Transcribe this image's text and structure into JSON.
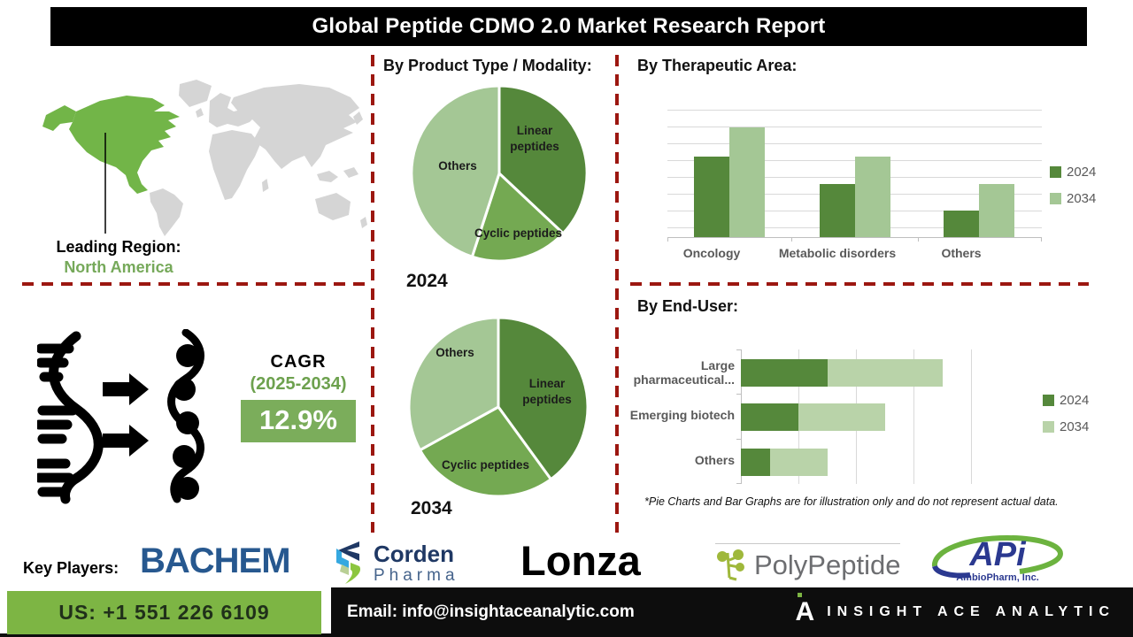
{
  "title": "Global Peptide CDMO 2.0 Market Research Report",
  "map": {
    "leading_label": "Leading Region:",
    "leading_value": "North America"
  },
  "growth": {
    "cagr_label": "CAGR",
    "period": "(2025-2034)",
    "value": "12.9%"
  },
  "sections": {
    "product": "By Product Type / Modality:",
    "therapeutic": "By Therapeutic Area:",
    "end_user": "By End-User:"
  },
  "chart_data": [
    {
      "type": "pie",
      "year_label": "2024",
      "group": "By Product Type / Modality:",
      "slices": [
        {
          "label": "Linear peptides",
          "value": 37
        },
        {
          "label": "Cyclic peptides",
          "value": 18
        },
        {
          "label": "Others",
          "value": 45
        }
      ]
    },
    {
      "type": "pie",
      "year_label": "2034",
      "group": "By Product Type / Modality:",
      "slices": [
        {
          "label": "Linear peptides",
          "value": 40
        },
        {
          "label": "Cyclic peptides",
          "value": 27
        },
        {
          "label": "Others",
          "value": 33
        }
      ]
    },
    {
      "type": "bar",
      "group": "By Therapeutic Area:",
      "categories": [
        "Oncology",
        "Metabolic disorders",
        "Others"
      ],
      "series": [
        {
          "name": "2024",
          "values": [
            63,
            42,
            21
          ]
        },
        {
          "name": "2034",
          "values": [
            86,
            63,
            42
          ]
        }
      ],
      "ylim": [
        0,
        100
      ],
      "grid": true,
      "legend": "right"
    },
    {
      "type": "stacked-hbar",
      "group": "By End-User:",
      "categories": [
        "Large pharmaceutical...",
        "Emerging biotech",
        "Others"
      ],
      "series": [
        {
          "name": "2024",
          "values": [
            30,
            20,
            10
          ]
        },
        {
          "name": "2034",
          "values": [
            40,
            30,
            20
          ]
        }
      ],
      "xlim": [
        0,
        80
      ],
      "grid": true,
      "legend": "right"
    }
  ],
  "footnote": "*Pie Charts and Bar Graphs are for illustration only and do not represent actual data.",
  "key_players": {
    "label": "Key Players:",
    "bachem": "BACHEM",
    "corden_line1": "Corden",
    "corden_line2": "Pharma",
    "lonza": "Lonza",
    "polypeptide": "PolyPeptide",
    "api": "APi",
    "api_sub": "AmbioPharm, Inc."
  },
  "footer": {
    "phone": "US: +1 551 226 6109",
    "email": "Email: info@insightaceanalytic.com",
    "brand_mark": "A",
    "brand": "INSIGHT ACE ANALYTIC"
  },
  "colors": {
    "green_dark": "#55883B",
    "green_mid": "#74A952",
    "green_light": "#A4C795",
    "green_lighter": "#B9D3A9",
    "map_green": "#72B548",
    "map_gray": "#D5D5D5",
    "dash_red": "#9C1710",
    "cagr_green": "#7BAD5B",
    "footer_green": "#7DB544"
  }
}
